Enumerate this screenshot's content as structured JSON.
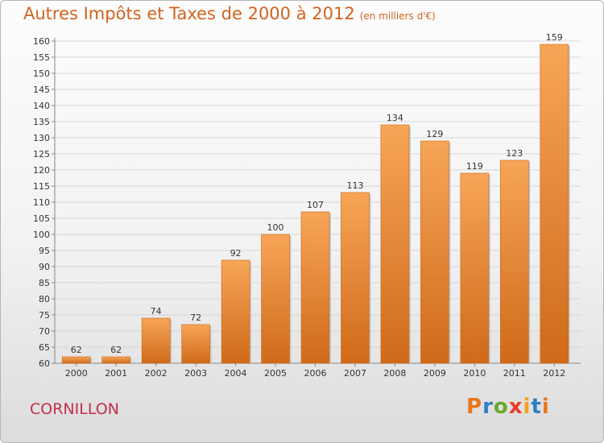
{
  "header": {
    "title": "Autres Impôts et Taxes de 2000 à 2012",
    "subtitle": "(en milliers d'€)"
  },
  "footer": {
    "city": "CORNILLON",
    "logo_text": "Proxiti",
    "logo_colors": [
      "#e8771b",
      "#2f7fc4",
      "#6aa82e",
      "#e83c2c",
      "#f0a21e",
      "#2f7fc4",
      "#e8771b"
    ]
  },
  "chart_data": {
    "type": "bar",
    "title": "Autres Impôts et Taxes de 2000 à 2012",
    "subtitle": "(en milliers d'€)",
    "categories": [
      "2000",
      "2001",
      "2002",
      "2003",
      "2004",
      "2005",
      "2006",
      "2007",
      "2008",
      "2009",
      "2010",
      "2011",
      "2012"
    ],
    "values": [
      62,
      62,
      74,
      72,
      92,
      100,
      107,
      113,
      134,
      129,
      119,
      123,
      159
    ],
    "data_labels": [
      "62",
      "62",
      "74",
      "72",
      "92",
      "100",
      "107",
      "113",
      "134",
      "129",
      "119",
      "123",
      "159"
    ],
    "yticks": [
      "60",
      "65",
      "70",
      "75",
      "80",
      "85",
      "90",
      "95",
      "100",
      "105",
      "110",
      "115",
      "120",
      "125",
      "130",
      "135",
      "140",
      "145",
      "150",
      "155",
      "160"
    ],
    "ylim": [
      60,
      160
    ],
    "grid": true,
    "bar_color": "#ef8a34"
  }
}
